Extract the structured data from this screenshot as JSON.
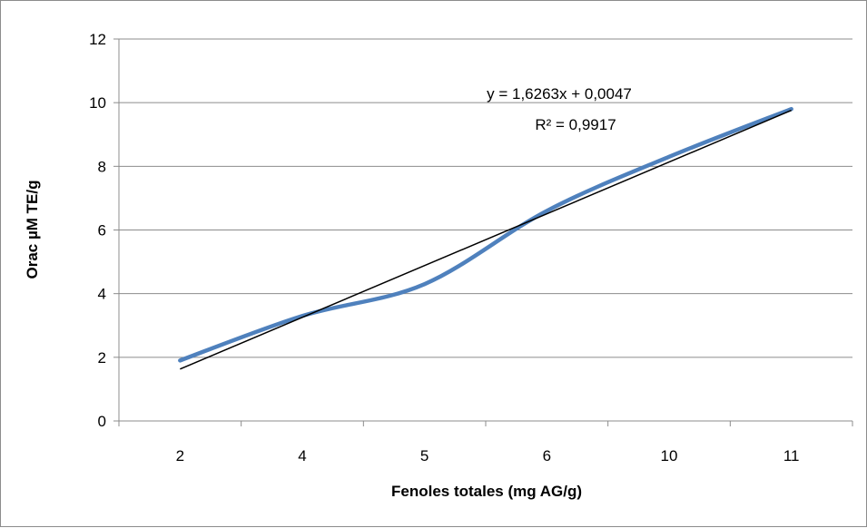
{
  "chart_data": {
    "type": "line",
    "categories": [
      "2",
      "4",
      "5",
      "6",
      "10",
      "11"
    ],
    "series": [
      {
        "values": [
          1.9,
          3.3,
          4.3,
          6.6,
          8.3,
          9.8
        ],
        "color": "#4f81bd"
      }
    ],
    "trendline": {
      "equation": "y = 1,6263x + 0,0047",
      "r_squared": "R² = 0,9917",
      "start": [
        1,
        1.63
      ],
      "end": [
        6,
        9.76
      ],
      "color": "#000000"
    },
    "xlabel": "Fenoles totales (mg AG/g)",
    "ylabel": "Orac µM TE/g",
    "ylim": [
      0,
      12
    ],
    "yticks": [
      0,
      2,
      4,
      6,
      8,
      10,
      12
    ],
    "grid": true
  }
}
